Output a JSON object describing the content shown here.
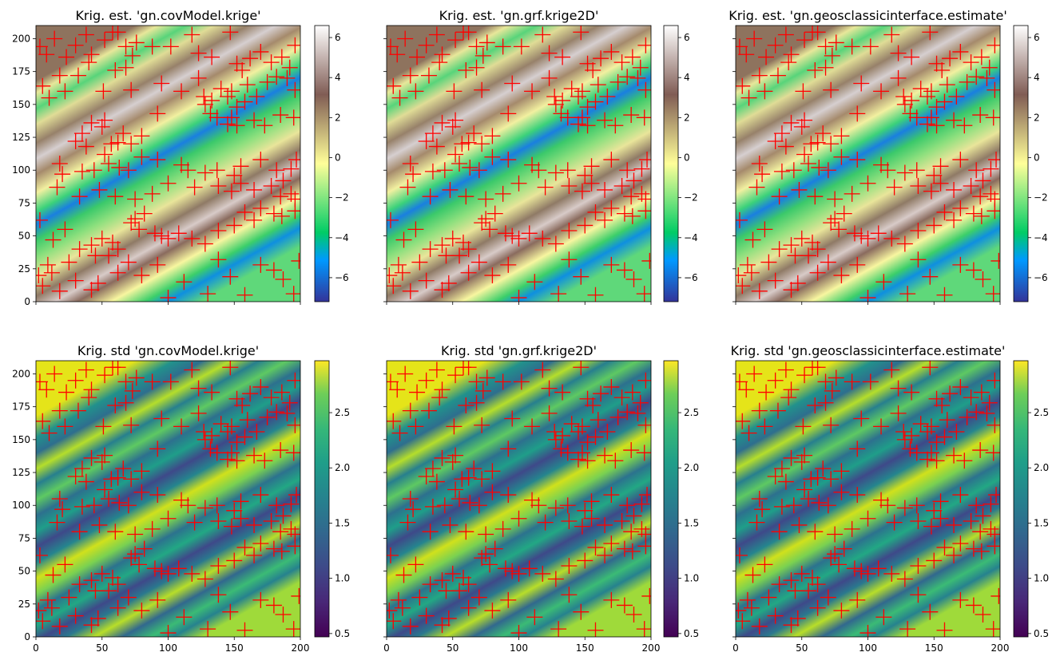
{
  "figure": {
    "background": "#ffffff",
    "marker_color": "#ff0000"
  },
  "chart_data": [
    {
      "panel": "est-covModel",
      "type": "heatmap",
      "title": "Krig. est. 'gn.covModel.krige'",
      "quantity": "estimate",
      "xlim": [
        0,
        200
      ],
      "ylim": [
        0,
        210
      ],
      "xticks": [],
      "yticks": [
        "0",
        "25",
        "50",
        "75",
        "100",
        "125",
        "150",
        "175",
        "200"
      ],
      "colorbar": {
        "colormap": "terrain",
        "range": [
          -7.2,
          6.6
        ],
        "ticks": [
          "6",
          "4",
          "2",
          "0",
          "−2",
          "−4",
          "−6"
        ],
        "tick_values": [
          6,
          4,
          2,
          0,
          -2,
          -4,
          -6
        ]
      }
    },
    {
      "panel": "est-grf",
      "type": "heatmap",
      "title": "Krig. est. 'gn.grf.krige2D'",
      "quantity": "estimate",
      "xlim": [
        0,
        200
      ],
      "ylim": [
        0,
        210
      ],
      "xticks": [],
      "yticks": [],
      "colorbar": {
        "colormap": "terrain",
        "range": [
          -7.2,
          6.6
        ],
        "ticks": [
          "6",
          "4",
          "2",
          "0",
          "−2",
          "−4",
          "−6"
        ],
        "tick_values": [
          6,
          4,
          2,
          0,
          -2,
          -4,
          -6
        ]
      }
    },
    {
      "panel": "est-geosclassic",
      "type": "heatmap",
      "title": "Krig. est. 'gn.geosclassicinterface.estimate'",
      "quantity": "estimate",
      "xlim": [
        0,
        200
      ],
      "ylim": [
        0,
        210
      ],
      "xticks": [],
      "yticks": [],
      "colorbar": {
        "colormap": "terrain",
        "range": [
          -7.2,
          6.6
        ],
        "ticks": [
          "6",
          "4",
          "2",
          "0",
          "−2",
          "−4",
          "−6"
        ],
        "tick_values": [
          6,
          4,
          2,
          0,
          -2,
          -4,
          -6
        ]
      }
    },
    {
      "panel": "std-covModel",
      "type": "heatmap",
      "title": "Krig. std 'gn.covModel.krige'",
      "quantity": "std",
      "xlim": [
        0,
        200
      ],
      "ylim": [
        0,
        210
      ],
      "xticks": [
        "0",
        "50",
        "100",
        "150",
        "200"
      ],
      "yticks": [
        "0",
        "25",
        "50",
        "75",
        "100",
        "125",
        "150",
        "175",
        "200"
      ],
      "colorbar": {
        "colormap": "viridis",
        "range": [
          0.47,
          2.97
        ],
        "ticks": [
          "2.5",
          "2.0",
          "1.5",
          "1.0",
          "0.5"
        ],
        "tick_values": [
          2.5,
          2.0,
          1.5,
          1.0,
          0.5
        ]
      }
    },
    {
      "panel": "std-grf",
      "type": "heatmap",
      "title": "Krig. std 'gn.grf.krige2D'",
      "quantity": "std",
      "xlim": [
        0,
        200
      ],
      "ylim": [
        0,
        210
      ],
      "xticks": [
        "0",
        "50",
        "100",
        "150",
        "200"
      ],
      "yticks": [],
      "colorbar": {
        "colormap": "viridis",
        "range": [
          0.47,
          2.97
        ],
        "ticks": [
          "2.5",
          "2.0",
          "1.5",
          "1.0",
          "0.5"
        ],
        "tick_values": [
          2.5,
          2.0,
          1.5,
          1.0,
          0.5
        ]
      }
    },
    {
      "panel": "std-geosclassic",
      "type": "heatmap",
      "title": "Krig. std 'gn.geosclassicinterface.estimate'",
      "quantity": "std",
      "xlim": [
        0,
        200
      ],
      "ylim": [
        0,
        210
      ],
      "xticks": [
        "0",
        "50",
        "100",
        "150",
        "200"
      ],
      "yticks": [],
      "colorbar": {
        "colormap": "viridis",
        "range": [
          0.47,
          2.97
        ],
        "ticks": [
          "2.5",
          "2.0",
          "1.5",
          "1.0",
          "0.5"
        ],
        "tick_values": [
          2.5,
          2.0,
          1.5,
          1.0,
          0.5
        ]
      }
    }
  ],
  "data_points": {
    "marker": "+",
    "color": "#ff0000",
    "xy": [
      [
        3,
        194
      ],
      [
        8,
        188
      ],
      [
        14,
        200
      ],
      [
        23,
        186
      ],
      [
        30,
        195
      ],
      [
        38,
        203
      ],
      [
        42,
        188
      ],
      [
        52,
        199
      ],
      [
        58,
        205
      ],
      [
        62,
        205
      ],
      [
        68,
        194
      ],
      [
        73,
        187
      ],
      [
        76,
        197
      ],
      [
        88,
        194
      ],
      [
        102,
        194
      ],
      [
        118,
        203
      ],
      [
        123,
        189
      ],
      [
        133,
        186
      ],
      [
        147,
        205
      ],
      [
        152,
        181
      ],
      [
        156,
        176
      ],
      [
        162,
        185
      ],
      [
        170,
        190
      ],
      [
        178,
        182
      ],
      [
        186,
        186
      ],
      [
        192,
        178
      ],
      [
        196,
        195
      ],
      [
        5,
        164
      ],
      [
        10,
        155
      ],
      [
        18,
        172
      ],
      [
        22,
        160
      ],
      [
        32,
        172
      ],
      [
        40,
        182
      ],
      [
        51,
        160
      ],
      [
        60,
        176
      ],
      [
        68,
        178
      ],
      [
        72,
        161
      ],
      [
        95,
        166
      ],
      [
        110,
        160
      ],
      [
        123,
        170
      ],
      [
        127,
        156
      ],
      [
        133,
        153
      ],
      [
        140,
        162
      ],
      [
        145,
        156
      ],
      [
        148,
        160
      ],
      [
        152,
        148
      ],
      [
        160,
        165
      ],
      [
        167,
        156
      ],
      [
        175,
        167
      ],
      [
        182,
        171
      ],
      [
        190,
        170
      ],
      [
        196,
        161
      ],
      [
        30,
        122
      ],
      [
        35,
        128
      ],
      [
        38,
        118
      ],
      [
        42,
        136
      ],
      [
        50,
        133
      ],
      [
        52,
        138
      ],
      [
        57,
        120
      ],
      [
        62,
        121
      ],
      [
        66,
        128
      ],
      [
        72,
        120
      ],
      [
        80,
        126
      ],
      [
        92,
        143
      ],
      [
        128,
        150
      ],
      [
        132,
        143
      ],
      [
        137,
        140
      ],
      [
        145,
        135
      ],
      [
        148,
        140
      ],
      [
        152,
        134
      ],
      [
        158,
        152
      ],
      [
        165,
        138
      ],
      [
        173,
        134
      ],
      [
        185,
        142
      ],
      [
        195,
        140
      ],
      [
        18,
        105
      ],
      [
        20,
        97
      ],
      [
        35,
        99
      ],
      [
        44,
        100
      ],
      [
        52,
        112
      ],
      [
        55,
        105
      ],
      [
        63,
        102
      ],
      [
        70,
        100
      ],
      [
        80,
        110
      ],
      [
        92,
        108
      ],
      [
        110,
        104
      ],
      [
        115,
        100
      ],
      [
        128,
        98
      ],
      [
        137,
        100
      ],
      [
        150,
        96
      ],
      [
        155,
        103
      ],
      [
        170,
        108
      ],
      [
        182,
        100
      ],
      [
        187,
        92
      ],
      [
        193,
        101
      ],
      [
        197,
        108
      ],
      [
        16,
        87
      ],
      [
        33,
        80
      ],
      [
        48,
        85
      ],
      [
        60,
        80
      ],
      [
        75,
        78
      ],
      [
        88,
        82
      ],
      [
        100,
        90
      ],
      [
        120,
        87
      ],
      [
        138,
        88
      ],
      [
        148,
        84
      ],
      [
        155,
        90
      ],
      [
        165,
        85
      ],
      [
        178,
        88
      ],
      [
        185,
        80
      ],
      [
        193,
        82
      ],
      [
        196,
        78
      ],
      [
        3,
        62
      ],
      [
        13,
        47
      ],
      [
        22,
        55
      ],
      [
        33,
        40
      ],
      [
        42,
        43
      ],
      [
        45,
        35
      ],
      [
        50,
        48
      ],
      [
        58,
        45
      ],
      [
        62,
        40
      ],
      [
        72,
        60
      ],
      [
        75,
        63
      ],
      [
        78,
        55
      ],
      [
        82,
        67
      ],
      [
        90,
        52
      ],
      [
        95,
        50
      ],
      [
        100,
        48
      ],
      [
        108,
        52
      ],
      [
        118,
        48
      ],
      [
        128,
        44
      ],
      [
        138,
        54
      ],
      [
        150,
        58
      ],
      [
        158,
        68
      ],
      [
        165,
        62
      ],
      [
        170,
        71
      ],
      [
        180,
        67
      ],
      [
        186,
        65
      ],
      [
        196,
        69
      ],
      [
        2,
        20
      ],
      [
        5,
        12
      ],
      [
        9,
        28
      ],
      [
        12,
        22
      ],
      [
        18,
        8
      ],
      [
        25,
        30
      ],
      [
        30,
        16
      ],
      [
        42,
        9
      ],
      [
        47,
        14
      ],
      [
        55,
        35
      ],
      [
        62,
        22
      ],
      [
        70,
        30
      ],
      [
        80,
        20
      ],
      [
        92,
        28
      ],
      [
        100,
        3
      ],
      [
        112,
        15
      ],
      [
        130,
        6
      ],
      [
        138,
        32
      ],
      [
        147,
        19
      ],
      [
        158,
        5
      ],
      [
        170,
        28
      ],
      [
        180,
        24
      ],
      [
        187,
        17
      ],
      [
        195,
        6
      ],
      [
        199,
        31
      ]
    ]
  }
}
